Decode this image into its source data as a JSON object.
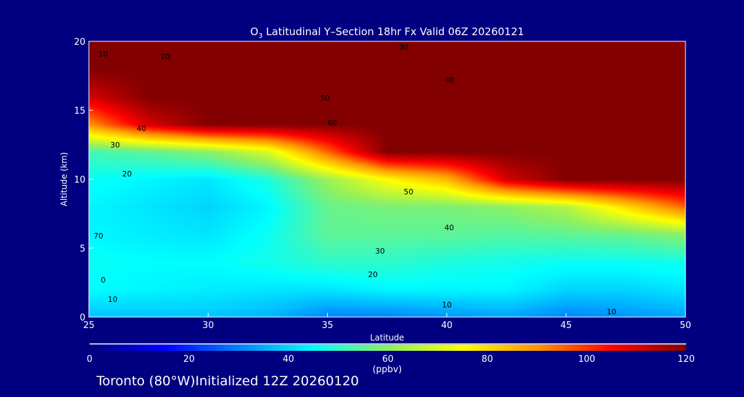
{
  "chart_data": {
    "type": "heatmap",
    "title_prefix": "O",
    "title_sub": "3",
    "title": " Latitudinal Y–Section 18hr  Fx Valid 06Z 20260121",
    "xlabel": "Latitude",
    "ylabel": "Altitude (km)",
    "xlim": [
      25,
      50
    ],
    "ylim": [
      0,
      20
    ],
    "xticks": [
      "25",
      "30",
      "35",
      "40",
      "45",
      "50"
    ],
    "yticks": [
      "0",
      "5",
      "10",
      "15",
      "20"
    ],
    "x": [
      25,
      27.5,
      30,
      32.5,
      35,
      37.5,
      40,
      42.5,
      45,
      47.5,
      50
    ],
    "y": [
      0,
      2,
      4,
      6,
      8,
      10,
      12,
      14,
      16,
      18,
      20
    ],
    "z": [
      [
        38,
        38,
        38,
        36,
        30,
        30,
        32,
        34,
        30,
        32,
        34
      ],
      [
        45,
        44,
        43,
        42,
        42,
        44,
        44,
        44,
        40,
        40,
        42
      ],
      [
        46,
        45,
        45,
        47,
        50,
        50,
        48,
        47,
        46,
        46,
        47
      ],
      [
        44,
        43,
        42,
        46,
        55,
        55,
        55,
        54,
        55,
        56,
        60
      ],
      [
        44,
        42,
        40,
        44,
        56,
        58,
        58,
        60,
        65,
        80,
        95
      ],
      [
        46,
        44,
        42,
        48,
        62,
        75,
        85,
        110,
        120,
        120,
        120
      ],
      [
        52,
        55,
        60,
        70,
        95,
        120,
        120,
        120,
        120,
        120,
        120
      ],
      [
        90,
        110,
        120,
        120,
        120,
        120,
        120,
        120,
        120,
        120,
        120
      ],
      [
        110,
        120,
        120,
        120,
        120,
        120,
        120,
        120,
        120,
        120,
        120
      ],
      [
        120,
        120,
        120,
        120,
        120,
        120,
        120,
        120,
        120,
        120,
        120
      ],
      [
        120,
        120,
        120,
        120,
        120,
        120,
        120,
        120,
        120,
        120,
        120
      ]
    ],
    "colorbar": {
      "min": 0,
      "max": 120,
      "ticks": [
        "0",
        "20",
        "40",
        "60",
        "80",
        "100",
        "120"
      ],
      "label": "(ppbv)"
    },
    "contour_labels": [
      {
        "text": "10",
        "lat": 25.6,
        "alt": 19.1
      },
      {
        "text": "20",
        "lat": 28.2,
        "alt": 18.9
      },
      {
        "text": "30",
        "lat": 38.2,
        "alt": 19.6
      },
      {
        "text": "40",
        "lat": 40.1,
        "alt": 17.2
      },
      {
        "text": "50",
        "lat": 34.9,
        "alt": 15.9
      },
      {
        "text": "60",
        "lat": 35.2,
        "alt": 14.1
      },
      {
        "text": "40",
        "lat": 27.2,
        "alt": 13.7
      },
      {
        "text": "30",
        "lat": 26.1,
        "alt": 12.5
      },
      {
        "text": "20",
        "lat": 26.6,
        "alt": 10.4
      },
      {
        "text": "50",
        "lat": 38.4,
        "alt": 9.1
      },
      {
        "text": "40",
        "lat": 40.1,
        "alt": 6.5
      },
      {
        "text": "30",
        "lat": 37.2,
        "alt": 4.8
      },
      {
        "text": "20",
        "lat": 36.9,
        "alt": 3.1
      },
      {
        "text": "10",
        "lat": 40.0,
        "alt": 0.9
      },
      {
        "text": "10",
        "lat": 46.9,
        "alt": 0.4
      },
      {
        "text": "70",
        "lat": 25.4,
        "alt": 5.9
      },
      {
        "text": "0",
        "lat": 25.6,
        "alt": 2.7
      },
      {
        "text": "10",
        "lat": 26.0,
        "alt": 1.3
      }
    ]
  },
  "footer": "Toronto (80°W)Initialized 12Z 20260120"
}
